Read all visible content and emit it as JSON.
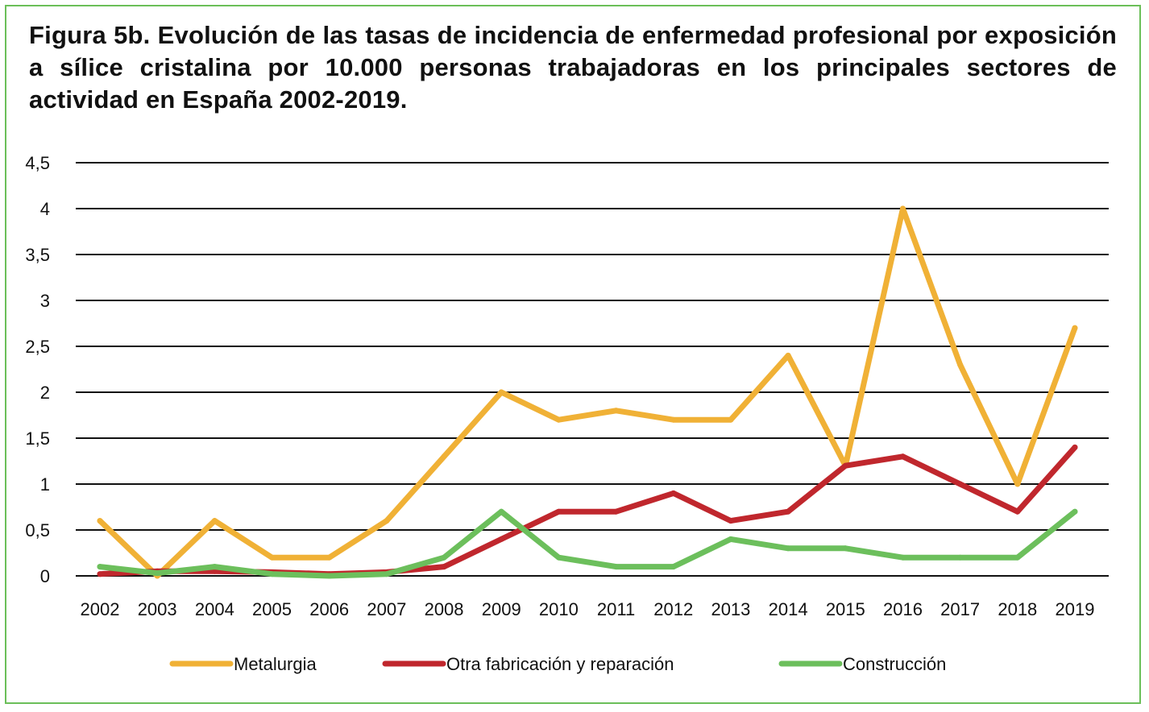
{
  "chart_data": {
    "type": "line",
    "title": "Figura 5b. Evolución de las tasas de incidencia de enfermedad profesional por exposición a sílice cristalina por 10.000 personas trabajadoras en los principales sectores de actividad en España 2002-2019.",
    "xlabel": "",
    "ylabel": "",
    "ylim": [
      0,
      4.5
    ],
    "grid": true,
    "legend_position": "bottom",
    "categories": [
      "2002",
      "2003",
      "2004",
      "2005",
      "2006",
      "2007",
      "2008",
      "2009",
      "2010",
      "2011",
      "2012",
      "2013",
      "2014",
      "2015",
      "2016",
      "2017",
      "2018",
      "2019"
    ],
    "y_ticks": [
      {
        "value": 0,
        "label": "0"
      },
      {
        "value": 0.5,
        "label": "0,5"
      },
      {
        "value": 1,
        "label": "1"
      },
      {
        "value": 1.5,
        "label": "1,5"
      },
      {
        "value": 2,
        "label": "2"
      },
      {
        "value": 2.5,
        "label": "2,5"
      },
      {
        "value": 3,
        "label": "3"
      },
      {
        "value": 3.5,
        "label": "3,5"
      },
      {
        "value": 4,
        "label": "4"
      },
      {
        "value": 4.5,
        "label": "4,5"
      }
    ],
    "series": [
      {
        "name": "Metalurgia",
        "color": "#f0b136",
        "values": [
          0.6,
          0.0,
          0.6,
          0.2,
          0.2,
          0.6,
          1.3,
          2.0,
          1.7,
          1.8,
          1.7,
          1.7,
          2.4,
          1.2,
          4.0,
          2.3,
          1.0,
          2.7
        ]
      },
      {
        "name": "Otra fabricación y reparación",
        "color": "#c0272d",
        "values": [
          0.02,
          0.05,
          0.05,
          0.04,
          0.02,
          0.04,
          0.1,
          0.4,
          0.7,
          0.7,
          0.9,
          0.6,
          0.7,
          1.2,
          1.3,
          1.0,
          0.7,
          1.4
        ]
      },
      {
        "name": "Construcción",
        "color": "#6cbf5c",
        "values": [
          0.1,
          0.03,
          0.1,
          0.02,
          0.0,
          0.02,
          0.2,
          0.7,
          0.2,
          0.1,
          0.1,
          0.4,
          0.3,
          0.3,
          0.2,
          0.2,
          0.2,
          0.7
        ]
      }
    ]
  }
}
